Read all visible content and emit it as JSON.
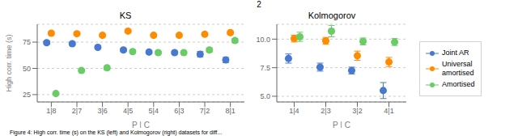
{
  "chart_data": [
    {
      "type": "scatter",
      "title": "KS",
      "xlabel": "P | C",
      "ylabel": "High corr. time (s)",
      "categories": [
        "1|8",
        "2|7",
        "3|6",
        "4|5",
        "5|4",
        "6|3",
        "7|2",
        "8|1"
      ],
      "series": [
        {
          "name": "Joint AR",
          "color": "#4878CF",
          "values": [
            74.5,
            73.5,
            70.0,
            67.5,
            65.5,
            65.0,
            63.5,
            58.0
          ],
          "err": [
            1.5,
            1.5,
            1.5,
            1.5,
            1.5,
            1.5,
            2.5,
            2.5
          ]
        },
        {
          "name": "Universal\namortised",
          "color": "#FF8C00",
          "values": [
            83.5,
            83.0,
            81.5,
            85.5,
            81.5,
            81.5,
            82.5,
            84.0
          ],
          "err": [
            1.5,
            1.5,
            1.5,
            1.5,
            1.5,
            1.5,
            1.5,
            1.5
          ]
        },
        {
          "name": "Amortised",
          "color": "#6ACC65",
          "values": [
            26.0,
            48.0,
            50.5,
            66.0,
            65.0,
            65.0,
            67.5,
            76.5
          ],
          "err": [
            1.0,
            1.5,
            2.0,
            1.5,
            1.5,
            1.5,
            2.0,
            2.0
          ]
        }
      ],
      "ylim": [
        18,
        92
      ],
      "yticks": [
        25,
        50,
        75
      ],
      "grid": true,
      "marker": "circle",
      "legend": "right",
      "annotations": [
        "2",
        "Figure 4: High corr. time (s) on the KS (left) and Kolmogorov (right) datasets for diff..."
      ]
    },
    {
      "type": "scatter",
      "title": "Kolmogorov",
      "xlabel": "P | C",
      "categories": [
        "1|4",
        "2|3",
        "3|2",
        "4|1"
      ],
      "series": [
        {
          "name": "Joint AR",
          "color": "#4878CF",
          "values": [
            8.3,
            7.55,
            7.25,
            5.5
          ],
          "err": [
            0.4,
            0.35,
            0.3,
            0.7
          ]
        },
        {
          "name": "Universal\namortised",
          "color": "#FF8C00",
          "values": [
            10.05,
            9.85,
            8.55,
            8.0
          ],
          "err": [
            0.3,
            0.3,
            0.4,
            0.4
          ]
        },
        {
          "name": "Amortised",
          "color": "#6ACC65",
          "values": [
            10.2,
            10.7,
            9.8,
            9.75
          ],
          "err": [
            0.4,
            0.5,
            0.3,
            0.3
          ]
        }
      ],
      "ylim": [
        4.5,
        11.3
      ],
      "yticks": [
        {
          "value": 5,
          "label": "5.0"
        },
        7.5,
        {
          "value": 10,
          "label": "10.0"
        }
      ],
      "grid": true,
      "marker": "circle"
    }
  ]
}
